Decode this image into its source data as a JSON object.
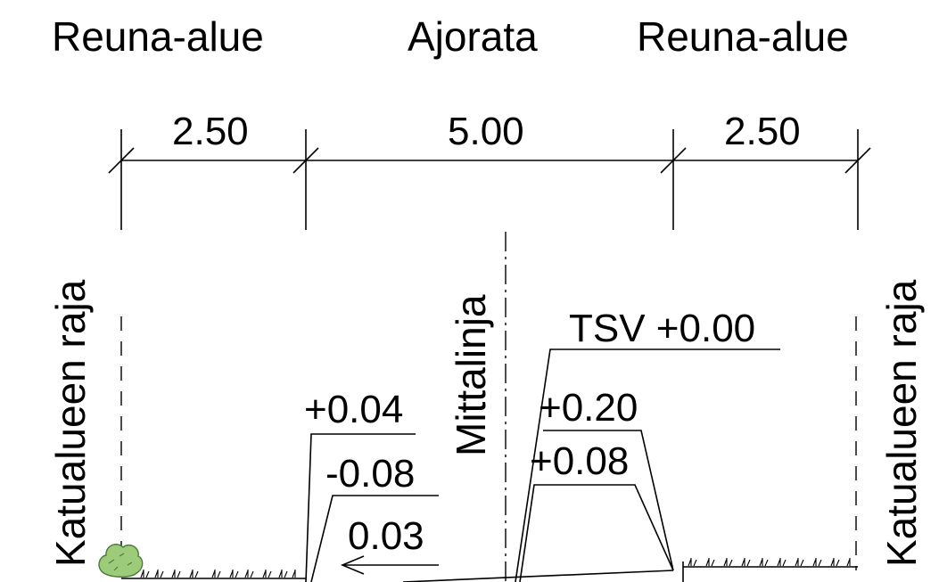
{
  "headers": {
    "left": "Reuna-alue",
    "center": "Ajorata",
    "right": "Reuna-alue"
  },
  "dimensions": {
    "left": "2.50",
    "center": "5.00",
    "right": "2.50"
  },
  "boundaries": {
    "left": "Katualueen raja",
    "right": "Katualueen raja"
  },
  "centerline": {
    "label": "Mittalinja"
  },
  "elevations": {
    "left_top": "+0.04",
    "left_mid": "-0.08",
    "left_slope": "0.03",
    "right_tsv": "TSV +0.00",
    "right_top": "+0.20",
    "right_mid": "+0.08"
  },
  "colors": {
    "line": "#000000",
    "shrub_fill": "#9ccc7a",
    "shrub_stroke": "#4a7a3a"
  }
}
